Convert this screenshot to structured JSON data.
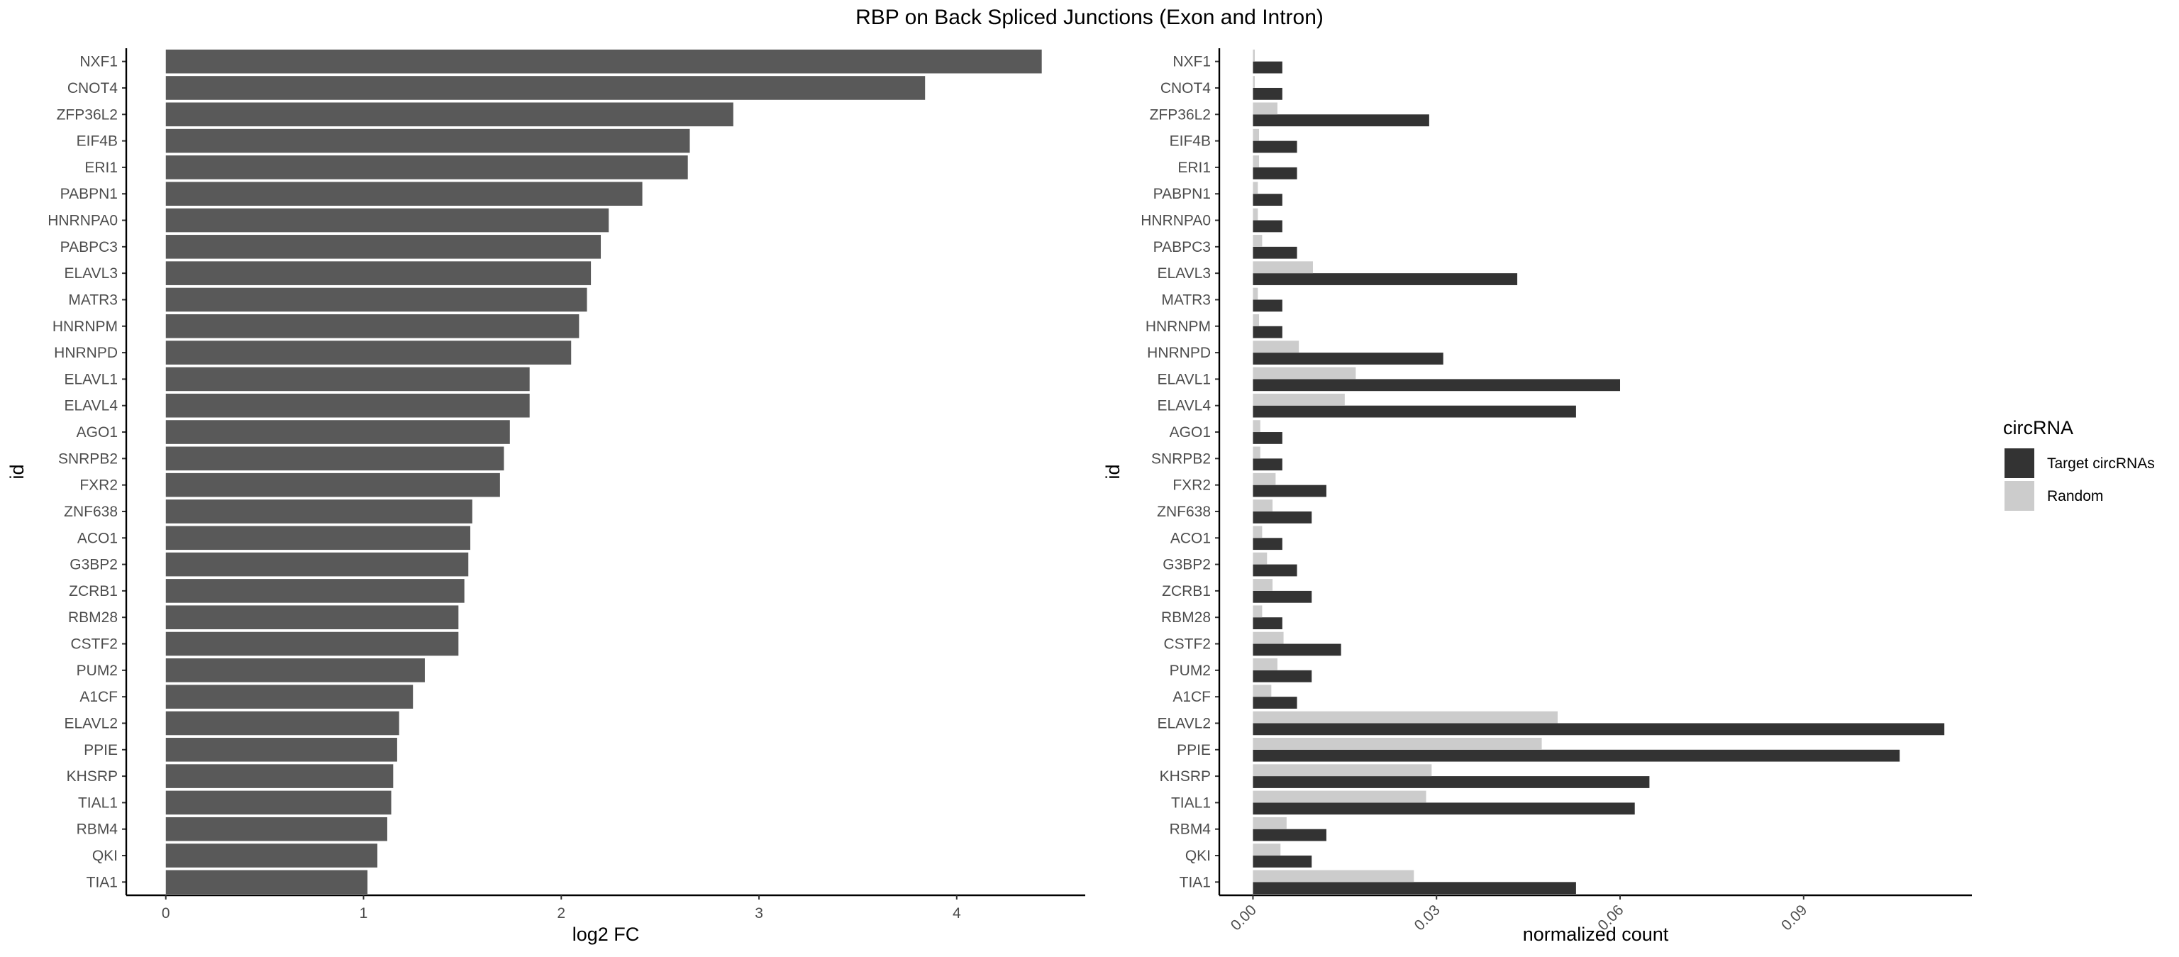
{
  "title": "RBP on Back Spliced Junctions (Exon and Intron)",
  "colors": {
    "left_bar": "#595959",
    "target": "#333333",
    "random": "#cccccc",
    "axis": "#000000",
    "tick_text": "#4d4d4d"
  },
  "chart_data": [
    {
      "type": "bar",
      "orientation": "horizontal",
      "xlabel": "log2 FC",
      "ylabel": "id",
      "xlim": [
        -0.2,
        4.65
      ],
      "xticks": [
        0,
        1,
        2,
        3,
        4
      ],
      "xtick_labels": [
        "0",
        "1",
        "2",
        "3",
        "4"
      ],
      "grid": false,
      "categories": [
        "NXF1",
        "CNOT4",
        "ZFP36L2",
        "EIF4B",
        "ERI1",
        "PABPN1",
        "HNRNPA0",
        "PABPC3",
        "ELAVL3",
        "MATR3",
        "HNRNPM",
        "HNRNPD",
        "ELAVL1",
        "ELAVL4",
        "AGO1",
        "SNRPB2",
        "FXR2",
        "ZNF638",
        "ACO1",
        "G3BP2",
        "ZCRB1",
        "RBM28",
        "CSTF2",
        "PUM2",
        "A1CF",
        "ELAVL2",
        "PPIE",
        "KHSRP",
        "TIAL1",
        "RBM4",
        "QKI",
        "TIA1"
      ],
      "values": [
        4.43,
        3.84,
        2.87,
        2.65,
        2.64,
        2.41,
        2.24,
        2.2,
        2.15,
        2.13,
        2.09,
        2.05,
        1.84,
        1.84,
        1.74,
        1.71,
        1.69,
        1.55,
        1.54,
        1.53,
        1.51,
        1.48,
        1.48,
        1.31,
        1.25,
        1.18,
        1.17,
        1.15,
        1.14,
        1.12,
        1.07,
        1.02
      ]
    },
    {
      "type": "bar",
      "orientation": "horizontal",
      "grouped": true,
      "xlabel": "normalized count",
      "ylabel": "id",
      "xlim": [
        -0.0055,
        0.1175
      ],
      "xticks": [
        0.0,
        0.03,
        0.06,
        0.09
      ],
      "xtick_labels": [
        "0.00",
        "0.03",
        "0.06",
        "0.09"
      ],
      "xtick_rotation": -45,
      "grid": false,
      "legend": {
        "title": "circRNA",
        "position": "right"
      },
      "categories": [
        "NXF1",
        "CNOT4",
        "ZFP36L2",
        "EIF4B",
        "ERI1",
        "PABPN1",
        "HNRNPA0",
        "PABPC3",
        "ELAVL3",
        "MATR3",
        "HNRNPM",
        "HNRNPD",
        "ELAVL1",
        "ELAVL4",
        "AGO1",
        "SNRPB2",
        "FXR2",
        "ZNF638",
        "ACO1",
        "G3BP2",
        "ZCRB1",
        "RBM28",
        "CSTF2",
        "PUM2",
        "A1CF",
        "ELAVL2",
        "PPIE",
        "KHSRP",
        "TIAL1",
        "RBM4",
        "QKI",
        "TIA1"
      ],
      "series": [
        {
          "name": "Target circRNAs",
          "values": [
            0.0048,
            0.0048,
            0.0288,
            0.0072,
            0.0072,
            0.0048,
            0.0048,
            0.0072,
            0.0432,
            0.0048,
            0.0048,
            0.0311,
            0.06,
            0.0528,
            0.0048,
            0.0048,
            0.012,
            0.0096,
            0.0048,
            0.0072,
            0.0096,
            0.0048,
            0.0144,
            0.0096,
            0.0072,
            0.113,
            0.1057,
            0.0648,
            0.0624,
            0.012,
            0.0096,
            0.0528
          ]
        },
        {
          "name": "Random",
          "values": [
            0.0003,
            0.0003,
            0.004,
            0.001,
            0.001,
            0.0008,
            0.0008,
            0.0015,
            0.0098,
            0.0008,
            0.001,
            0.0075,
            0.0168,
            0.015,
            0.0012,
            0.0012,
            0.0037,
            0.0032,
            0.0015,
            0.0023,
            0.0032,
            0.0015,
            0.005,
            0.004,
            0.003,
            0.0498,
            0.0472,
            0.0292,
            0.0283,
            0.0055,
            0.0045,
            0.0263
          ]
        }
      ]
    }
  ]
}
